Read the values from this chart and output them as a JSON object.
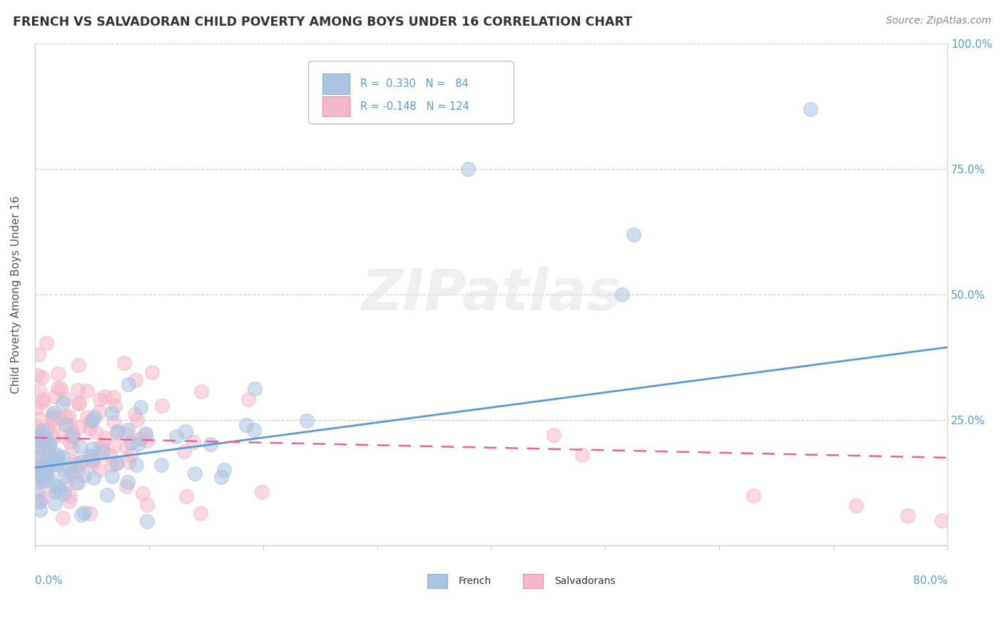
{
  "title": "FRENCH VS SALVADORAN CHILD POVERTY AMONG BOYS UNDER 16 CORRELATION CHART",
  "source": "Source: ZipAtlas.com",
  "ylabel": "Child Poverty Among Boys Under 16",
  "french_R": 0.33,
  "french_N": 84,
  "salv_R": -0.148,
  "salv_N": 124,
  "french_color": "#aac4e2",
  "salv_color": "#f5b8cb",
  "french_line_color": "#5b9bd5",
  "salv_line_color": "#f06090",
  "tick_label_color": "#5b9bd5",
  "title_color": "#333333",
  "source_color": "#888888",
  "background_color": "#ffffff",
  "watermark": "ZIPatlas",
  "xlim": [
    0.0,
    0.8
  ],
  "ylim": [
    0.0,
    1.0
  ],
  "ytick_positions": [
    0.0,
    0.25,
    0.5,
    0.75,
    1.0
  ],
  "ytick_labels": [
    "",
    "25.0%",
    "50.0%",
    "75.0%",
    "100.0%"
  ],
  "french_line_y0": 0.155,
  "french_line_y1": 0.395,
  "salv_line_y0": 0.215,
  "salv_line_y1": 0.175,
  "scatter_size": 200,
  "scatter_alpha": 0.55
}
